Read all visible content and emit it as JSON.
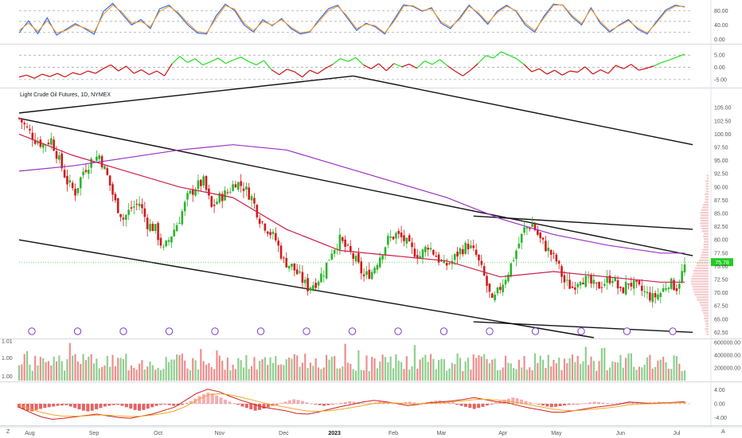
{
  "instrument_title": "Light Crude Oil Futures, 1D, NYMEX",
  "bottom_left_glyph": "Z",
  "bottom_right_glyph": "A",
  "chart_data": [
    {
      "type": "line",
      "panel": "stochastic",
      "y_ticks": [
        "80.00",
        "40.00",
        "0.00"
      ],
      "y_tick_values": [
        80,
        40,
        0
      ],
      "ylim": [
        -10,
        105
      ],
      "guides": [
        80,
        50,
        20
      ],
      "series": [
        {
          "color": "#2962ff",
          "values": [
            18,
            52,
            16,
            60,
            12,
            28,
            44,
            30,
            14,
            78,
            100,
            70,
            40,
            55,
            30,
            85,
            95,
            70,
            40,
            18,
            15,
            65,
            98,
            80,
            40,
            20,
            55,
            38,
            58,
            30,
            15,
            20,
            55,
            85,
            95,
            60,
            25,
            45,
            35,
            15,
            55,
            96,
            92,
            78,
            88,
            45,
            30,
            60,
            95,
            70,
            42,
            78,
            95,
            78,
            40,
            20,
            65,
            98,
            95,
            62,
            40,
            88,
            45,
            20,
            40,
            55,
            28,
            15,
            50,
            82,
            95,
            90
          ]
        },
        {
          "color": "#f59a23",
          "values": [
            25,
            45,
            22,
            52,
            18,
            25,
            40,
            32,
            20,
            70,
            95,
            75,
            45,
            50,
            35,
            78,
            92,
            74,
            45,
            22,
            18,
            58,
            94,
            84,
            45,
            24,
            50,
            40,
            55,
            34,
            18,
            22,
            50,
            80,
            92,
            65,
            30,
            42,
            38,
            18,
            50,
            92,
            94,
            80,
            85,
            50,
            34,
            56,
            92,
            74,
            46,
            74,
            92,
            80,
            45,
            24,
            60,
            95,
            96,
            66,
            44,
            84,
            50,
            24,
            38,
            52,
            32,
            18,
            46,
            78,
            92,
            92
          ]
        }
      ]
    },
    {
      "type": "line",
      "panel": "oscillator",
      "y_ticks": [
        "5.00",
        "0.00",
        "-5.00"
      ],
      "y_tick_values": [
        5,
        0,
        -5
      ],
      "ylim": [
        -8,
        9
      ],
      "guides": [
        5,
        0,
        -5
      ],
      "series": [
        {
          "color_up": "#22dd22",
          "color_down": "#cc1111",
          "values": [
            -4,
            -3.2,
            -4.5,
            -2.8,
            -3.8,
            -2.5,
            -4,
            -2.2,
            -3,
            -1.5,
            -2.5,
            -0.5,
            1,
            -1.5,
            0.5,
            -2.5,
            -1,
            -3,
            -1.5,
            -3.5,
            1.5,
            4.5,
            2,
            3.5,
            1,
            2.2,
            3.8,
            1.6,
            3,
            4.2,
            2.4,
            1,
            2.8,
            -1,
            -3,
            -0.8,
            -1.8,
            -4,
            -1.2,
            -2.6,
            -0.5,
            1.2,
            3.6,
            2.4,
            4,
            1,
            -0.6,
            1.5,
            -1.4,
            1.6,
            0.2,
            1.3,
            -0.4,
            2.6,
            1.2,
            3.2,
            0.6,
            -1.6,
            -3.5,
            -1.2,
            1.6,
            4.8,
            3.8,
            6.4,
            5,
            3.6,
            1.2,
            -1.8,
            -0.6,
            -2.8,
            -1.2,
            -3.2,
            -1.5,
            -2,
            0.2,
            -2.8,
            -1,
            -2.5,
            0.8,
            -0.6,
            1.2,
            -1.2,
            -0.4,
            0.6,
            2,
            3,
            4.2,
            5.4
          ]
        }
      ]
    },
    {
      "type": "candlestick",
      "panel": "price",
      "title": "Light Crude Oil Futures, 1D, NYMEX",
      "y_ticks": [
        "105.00",
        "102.50",
        "100.00",
        "97.50",
        "95.00",
        "92.50",
        "90.00",
        "87.50",
        "85.00",
        "82.50",
        "80.00",
        "77.50",
        "75.00",
        "72.50",
        "70.00",
        "67.50",
        "65.00",
        "62.50"
      ],
      "y_tick_values": [
        105,
        102.5,
        100,
        97.5,
        95,
        92.5,
        90,
        87.5,
        85,
        82.5,
        80,
        77.5,
        75,
        72.5,
        70,
        67.5,
        65,
        62.5
      ],
      "ylim": [
        61.5,
        108.5
      ],
      "x_labels": [
        "Aug",
        "Sep",
        "Oct",
        "Nov",
        "Dec",
        "2023",
        "Feb",
        "Mar",
        "Apr",
        "May",
        "Jun",
        "Jul"
      ],
      "x_label_index": [
        4,
        28,
        52,
        75,
        99,
        118,
        140,
        158,
        181,
        201,
        225,
        246
      ],
      "last_price": "75.78",
      "last_value": 75.78,
      "last_price_color": "#22cc22",
      "close_path": [
        [
          0,
          103
        ],
        [
          3,
          101
        ],
        [
          6,
          99
        ],
        [
          9,
          98
        ],
        [
          12,
          99
        ],
        [
          15,
          95
        ],
        [
          18,
          91
        ],
        [
          21,
          89
        ],
        [
          24,
          93
        ],
        [
          27,
          95
        ],
        [
          30,
          96
        ],
        [
          33,
          92
        ],
        [
          36,
          87
        ],
        [
          39,
          84
        ],
        [
          42,
          86
        ],
        [
          45,
          87
        ],
        [
          48,
          83
        ],
        [
          51,
          82
        ],
        [
          54,
          78
        ],
        [
          57,
          81
        ],
        [
          60,
          84
        ],
        [
          63,
          88
        ],
        [
          66,
          90
        ],
        [
          69,
          91
        ],
        [
          72,
          86
        ],
        [
          75,
          88
        ],
        [
          78,
          89
        ],
        [
          81,
          91
        ],
        [
          84,
          90
        ],
        [
          87,
          88
        ],
        [
          90,
          84
        ],
        [
          93,
          82
        ],
        [
          96,
          80
        ],
        [
          99,
          76
        ],
        [
          102,
          75
        ],
        [
          105,
          73
        ],
        [
          108,
          71
        ],
        [
          111,
          72
        ],
        [
          114,
          74
        ],
        [
          117,
          78
        ],
        [
          120,
          80
        ],
        [
          123,
          78
        ],
        [
          126,
          76
        ],
        [
          129,
          73
        ],
        [
          132,
          74
        ],
        [
          135,
          77
        ],
        [
          138,
          80
        ],
        [
          141,
          81
        ],
        [
          144,
          80
        ],
        [
          147,
          78
        ],
        [
          150,
          77
        ],
        [
          153,
          79
        ],
        [
          156,
          77
        ],
        [
          159,
          75
        ],
        [
          162,
          76
        ],
        [
          165,
          78
        ],
        [
          168,
          79
        ],
        [
          171,
          77
        ],
        [
          174,
          73
        ],
        [
          177,
          68
        ],
        [
          180,
          71
        ],
        [
          183,
          74
        ],
        [
          186,
          78
        ],
        [
          189,
          82
        ],
        [
          192,
          83
        ],
        [
          195,
          80
        ],
        [
          198,
          78
        ],
        [
          201,
          76
        ],
        [
          204,
          72
        ],
        [
          207,
          71
        ],
        [
          210,
          73
        ],
        [
          213,
          72
        ],
        [
          216,
          71
        ],
        [
          219,
          72
        ],
        [
          222,
          73
        ],
        [
          225,
          70
        ],
        [
          228,
          72
        ],
        [
          231,
          71
        ],
        [
          234,
          70
        ],
        [
          237,
          69
        ],
        [
          240,
          70
        ],
        [
          243,
          72
        ],
        [
          246,
          71
        ],
        [
          249,
          75
        ]
      ],
      "overlays": [
        {
          "name_color": "#cc1f4a",
          "points": [
            [
              0,
              100
            ],
            [
              20,
              96
            ],
            [
              40,
              93
            ],
            [
              60,
              90
            ],
            [
              80,
              88
            ],
            [
              100,
              82
            ],
            [
              120,
              78
            ],
            [
              140,
              77
            ],
            [
              160,
              76
            ],
            [
              180,
              73
            ],
            [
              200,
              74
            ],
            [
              220,
              73
            ],
            [
              240,
              72
            ],
            [
              249,
              72
            ]
          ]
        },
        {
          "name_color": "#9b33c4",
          "points": [
            [
              0,
              93
            ],
            [
              20,
              94
            ],
            [
              40,
              95.5
            ],
            [
              60,
              97
            ],
            [
              80,
              98
            ],
            [
              100,
              97
            ],
            [
              120,
              94
            ],
            [
              140,
              91
            ],
            [
              160,
              88
            ],
            [
              180,
              84
            ],
            [
              200,
              81
            ],
            [
              220,
              79
            ],
            [
              240,
              77.5
            ],
            [
              249,
              77.5
            ]
          ]
        }
      ],
      "trendlines": [
        {
          "p1": [
            0,
            104
          ],
          "p2": [
            125,
            111
          ]
        },
        {
          "p1": [
            125,
            111
          ],
          "p2": [
            252,
            98
          ]
        },
        {
          "p1": [
            0,
            103
          ],
          "p2": [
            252,
            77
          ]
        },
        {
          "p1": [
            0,
            80
          ],
          "p2": [
            215,
            61.5
          ]
        },
        {
          "p1": [
            170,
            64.5
          ],
          "p2": [
            252,
            62.5
          ]
        },
        {
          "p1": [
            170,
            84.5
          ],
          "p2": [
            252,
            82
          ]
        }
      ],
      "volume_profile_color": "#f1b8bb"
    },
    {
      "type": "bar",
      "panel": "volume",
      "y_ticks": [
        "600000.00",
        "400000.00",
        "200000.00"
      ],
      "y_tick_values": [
        600000,
        400000,
        200000
      ],
      "left_ticks": [
        "1.01",
        "1.00",
        "1.00"
      ],
      "ylim": [
        0,
        640000
      ]
    },
    {
      "type": "bar",
      "panel": "macd",
      "y_ticks": [
        "4.00",
        "0.00",
        "-4.00"
      ],
      "y_tick_values": [
        4,
        0,
        -4
      ],
      "ylim": [
        -6,
        6
      ],
      "histogram": [
        -1.2,
        -1.6,
        -2,
        -2.2,
        -1.8,
        -1.5,
        -1.2,
        -1,
        -0.8,
        -0.6,
        -0.5,
        -0.4,
        -0.8,
        -1.2,
        -1.6,
        -2,
        -2.2,
        -2,
        -1.6,
        -1.2,
        -0.8,
        -0.6,
        -0.4,
        -0.3,
        -0.6,
        -1,
        -1.4,
        -1.8,
        -2,
        -1.8,
        -1.4,
        -1,
        -0.6,
        -0.3,
        -0.2,
        -0.4,
        -0.6,
        -0.5,
        -0.3,
        0.3,
        0.8,
        1.5,
        2.2,
        2.8,
        3.2,
        3,
        2.4,
        1.8,
        1.2,
        0.6,
        0.2,
        -0.3,
        -0.8,
        -1.2,
        -1.6,
        -2,
        -1.8,
        -1.4,
        -1,
        -0.6,
        -0.3,
        0.2,
        0.6,
        1,
        1.3,
        1.1,
        0.8,
        0.4,
        0.1,
        -0.2,
        -0.4,
        -0.6,
        -0.4,
        -0.2,
        0.1,
        0.3,
        0.5,
        0.7,
        0.6,
        0.4,
        0.2,
        0.1,
        0.2,
        0.4,
        0.6,
        0.7,
        0.5,
        0.3,
        0.2,
        0.3,
        0.5,
        0.6,
        0.4,
        0.2,
        0.3,
        0.5,
        0.7,
        0.9,
        1,
        0.8,
        0.6,
        0.5,
        -0.3,
        -0.6,
        -0.9,
        -1.2,
        -1.5,
        -1.2,
        -0.9,
        -0.5,
        -0.2,
        0.4,
        0.8,
        1.2,
        1.5,
        1.8,
        1.6,
        1.2,
        0.8,
        0.4,
        0.1,
        -0.2,
        -0.5,
        -0.8,
        -1,
        -0.9,
        -0.7,
        -0.5,
        -0.3,
        -0.2,
        -0.1,
        0.1,
        0.2,
        0.4,
        0.6,
        0.5,
        0.3,
        0.2,
        0.1,
        0.2,
        0.3,
        0.4,
        0.5,
        0.4,
        0.3,
        0.2,
        0.3,
        0.4,
        0.5,
        0.6,
        0.5,
        0.4,
        0.3,
        0.4,
        0.5,
        0.6
      ],
      "series": [
        {
          "color": "#cc2222",
          "values": [
            -1,
            -2.5,
            -3.8,
            -4.5,
            -4.2,
            -3.8,
            -3.4,
            -3,
            -3.5,
            -4,
            -4.2,
            -3.6,
            -3,
            -2,
            -1,
            1,
            3,
            4.2,
            3.5,
            2.2,
            1,
            0,
            -1,
            -1.5,
            -2,
            -2.8,
            -3,
            -2.4,
            -1.6,
            -0.8,
            -0.2,
            0.5,
            1,
            0.6,
            0.1,
            -0.5,
            -0.2,
            0.3,
            0.5,
            0.8,
            1.2,
            1.8,
            1.2,
            0.6,
            0.3,
            -0.5,
            -1.2,
            -1.8,
            -2.4,
            -2.5,
            -2,
            -1.5,
            -1,
            -0.6,
            -0.2,
            0.5,
            0.3,
            0.1,
            0.2,
            0.4,
            0.6
          ]
        },
        {
          "color": "#f5a623",
          "values": [
            -0.5,
            -1.5,
            -2.5,
            -3.2,
            -3.6,
            -3.6,
            -3.5,
            -3.3,
            -3.3,
            -3.5,
            -3.7,
            -3.6,
            -3.3,
            -2.8,
            -2.1,
            -0.8,
            1,
            2.5,
            2.9,
            2.6,
            1.9,
            1.1,
            0.3,
            -0.4,
            -1,
            -1.6,
            -2.1,
            -2.2,
            -2,
            -1.6,
            -1.1,
            -0.5,
            0.1,
            0.3,
            0.2,
            0,
            -0.1,
            0.1,
            0.3,
            0.5,
            0.8,
            1.2,
            1.3,
            1.1,
            0.8,
            0.3,
            -0.3,
            -0.9,
            -1.5,
            -1.9,
            -2,
            -1.8,
            -1.5,
            -1.2,
            -0.8,
            -0.3,
            -0.1,
            0,
            0.1,
            0.3,
            0.4
          ]
        }
      ]
    }
  ]
}
